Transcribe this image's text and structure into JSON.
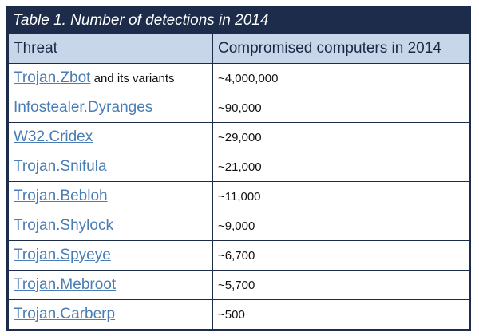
{
  "table": {
    "caption": "Table 1. Number of detections in 2014",
    "headers": {
      "threat": "Threat",
      "count": "Compromised computers in 2014"
    },
    "rows": [
      {
        "threat": "Trojan.Zbot",
        "suffix": " and its variants",
        "count": "~4,000,000"
      },
      {
        "threat": "Infostealer.Dyranges",
        "suffix": "",
        "count": "~90,000"
      },
      {
        "threat": "W32.Cridex",
        "suffix": "",
        "count": "~29,000"
      },
      {
        "threat": "Trojan.Snifula",
        "suffix": "",
        "count": "~21,000"
      },
      {
        "threat": "Trojan.Bebloh",
        "suffix": "",
        "count": "~11,000"
      },
      {
        "threat": "Trojan.Shylock",
        "suffix": "",
        "count": "~9,000"
      },
      {
        "threat": "Trojan.Spyeye",
        "suffix": "",
        "count": "~6,700"
      },
      {
        "threat": "Trojan.Mebroot",
        "suffix": "",
        "count": "~5,700"
      },
      {
        "threat": "Trojan.Carberp",
        "suffix": "",
        "count": "~500"
      }
    ]
  },
  "colors": {
    "caption_bg": "#1d2c4a",
    "header_bg": "#c8d6ea",
    "link": "#4a7db3"
  }
}
